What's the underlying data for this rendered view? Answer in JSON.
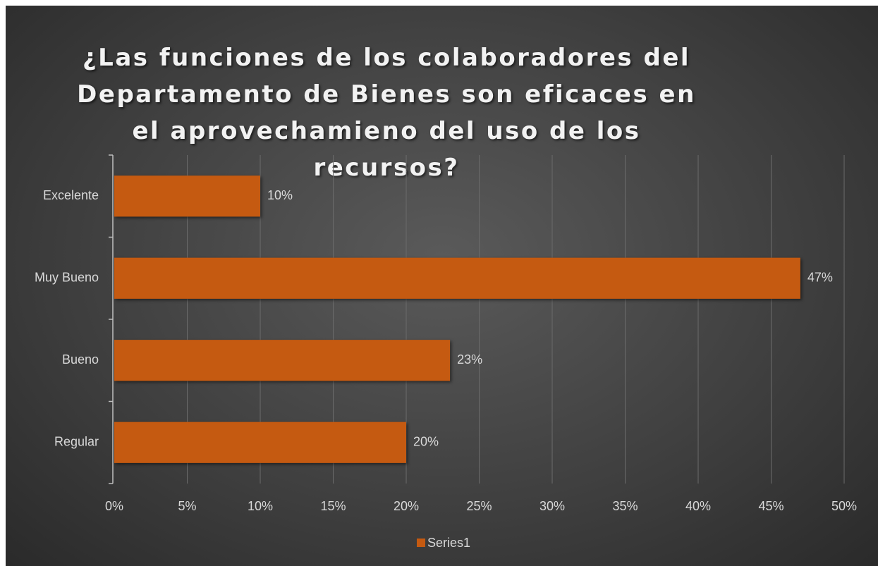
{
  "chart_data": {
    "type": "bar",
    "orientation": "horizontal",
    "title": "¿Las funciones de los colaboradores del Departamento de Bienes son eficaces en el aprovechamieno del uso de los recursos?",
    "categories": [
      "Excelente",
      "Muy Bueno",
      "Bueno",
      "Regular"
    ],
    "series": [
      {
        "name": "Series1",
        "color": "#c55a11",
        "values": [
          10,
          47,
          23,
          20
        ],
        "value_labels": [
          "10%",
          "47%",
          "23%",
          "20%"
        ]
      }
    ],
    "xlim": [
      0,
      50
    ],
    "xticks": [
      {
        "value": 0,
        "label": "0%"
      },
      {
        "value": 5,
        "label": "5%"
      },
      {
        "value": 10,
        "label": "10%"
      },
      {
        "value": 15,
        "label": "15%"
      },
      {
        "value": 20,
        "label": "20%"
      },
      {
        "value": 25,
        "label": "25%"
      },
      {
        "value": 30,
        "label": "30%"
      },
      {
        "value": 35,
        "label": "35%"
      },
      {
        "value": 40,
        "label": "40%"
      },
      {
        "value": 45,
        "label": "45%"
      },
      {
        "value": 50,
        "label": "50%"
      }
    ],
    "grid": true,
    "legend": "bottom"
  }
}
